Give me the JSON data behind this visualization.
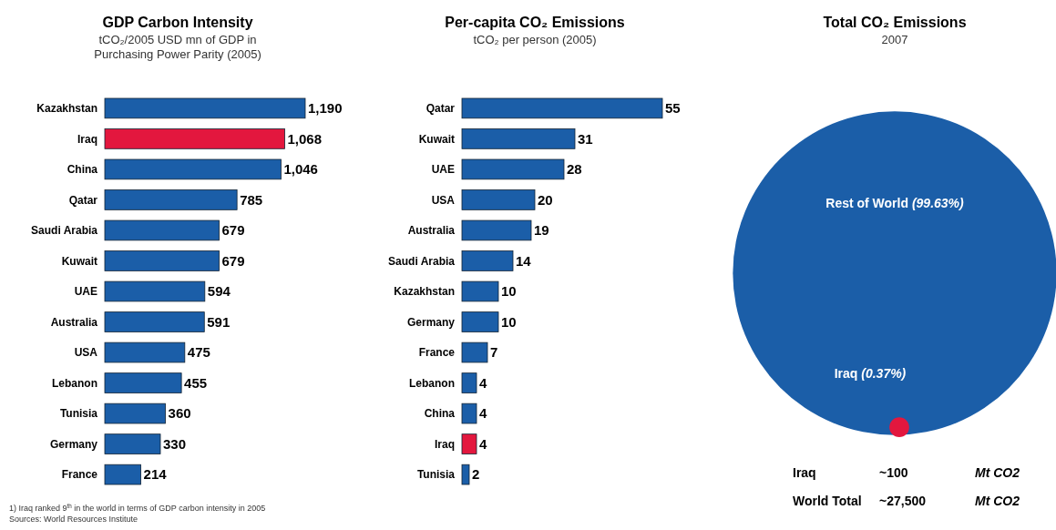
{
  "chart_data": [
    {
      "type": "bar",
      "orientation": "horizontal",
      "title": "GDP Carbon Intensity",
      "subtitle": "tCO₂/2005 USD mn of GDP in Purchasing Power Parity (2005)",
      "categories": [
        "Kazakhstan",
        "Iraq",
        "China",
        "Qatar",
        "Saudi Arabia",
        "Kuwait",
        "UAE",
        "Australia",
        "USA",
        "Lebanon",
        "Tunisia",
        "Germany",
        "France"
      ],
      "values": [
        1190,
        1068,
        1046,
        785,
        679,
        679,
        594,
        591,
        475,
        455,
        360,
        330,
        214
      ],
      "value_labels": [
        "1,190",
        "1,068",
        "1,046",
        "785",
        "679",
        "679",
        "594",
        "591",
        "475",
        "455",
        "360",
        "330",
        "214"
      ],
      "colors": [
        "#1b5ea8",
        "#e3173e",
        "#1b5ea8",
        "#1b5ea8",
        "#1b5ea8",
        "#1b5ea8",
        "#1b5ea8",
        "#1b5ea8",
        "#1b5ea8",
        "#1b5ea8",
        "#1b5ea8",
        "#1b5ea8",
        "#1b5ea8"
      ],
      "annotations": [
        "1)  Iraq ranked 9$^{th}$ in the world in terms of GDP carbon intensity in 2005",
        "Sources: World Resources Institute"
      ]
    },
    {
      "type": "bar",
      "orientation": "horizontal",
      "title": "Per-capita CO₂ Emissions",
      "subtitle": "tCO₂ per person (2005)",
      "categories": [
        "Qatar",
        "Kuwait",
        "UAE",
        "USA",
        "Australia",
        "Saudi Arabia",
        "Kazakhstan",
        "Germany",
        "France",
        "Lebanon",
        "China",
        "Iraq",
        "Tunisia"
      ],
      "values": [
        55,
        31,
        28,
        20,
        19,
        14,
        10,
        10,
        7,
        4,
        4,
        4,
        2
      ],
      "data_labels": true,
      "colors": [
        "#1b5ea8",
        "#1b5ea8",
        "#1b5ea8",
        "#1b5ea8",
        "#1b5ea8",
        "#1b5ea8",
        "#1b5ea8",
        "#1b5ea8",
        "#1b5ea8",
        "#1b5ea8",
        "#1b5ea8",
        "#e3173e",
        "#1b5ea8"
      ]
    },
    {
      "type": "other",
      "title": "Total CO₂ Emissions",
      "subtitle": "2007",
      "categories": [
        "Rest of World",
        "Iraq"
      ],
      "values": [
        99.63,
        0.37
      ],
      "value_labels": [
        "(99.63%)",
        "(0.37%)"
      ],
      "colors": [
        "#1b5ea8",
        "#e3173e"
      ],
      "annotations": [
        "Iraq",
        "~100",
        "Mt CO2",
        "World Total",
        "~27,500",
        "Mt CO2"
      ]
    }
  ]
}
